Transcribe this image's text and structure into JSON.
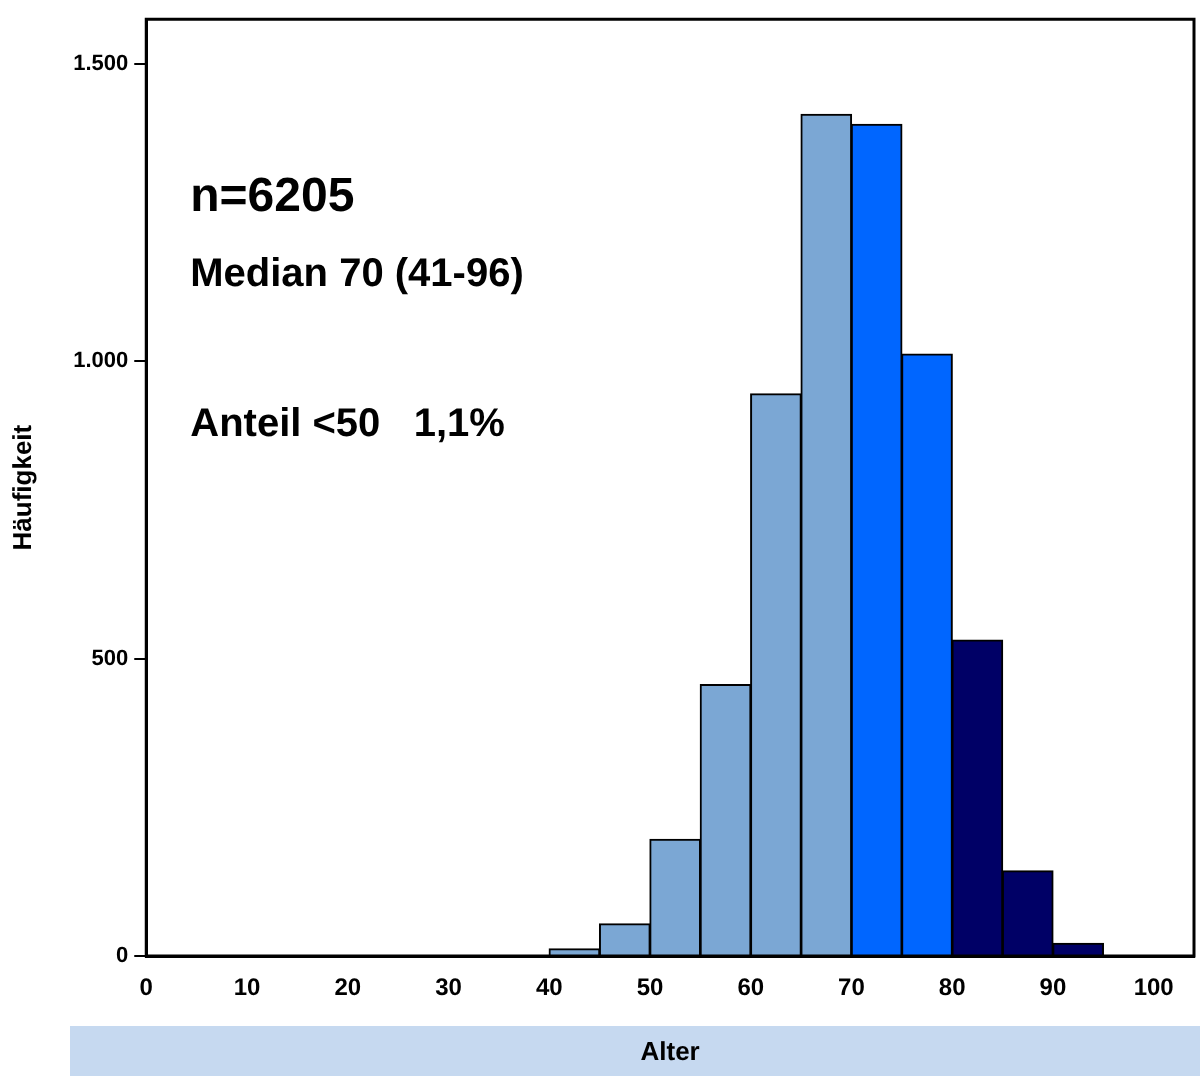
{
  "chart_data": {
    "type": "histogram",
    "xlabel": "Alter",
    "ylabel": "Häufigkeit",
    "bins": [
      40,
      45,
      50,
      55,
      60,
      65,
      70,
      75,
      80,
      85,
      90,
      95
    ],
    "values": [
      12,
      54,
      196,
      456,
      945,
      1415,
      1398,
      1012,
      531,
      143,
      21
    ],
    "colors": [
      "#7ba7d4",
      "#7ba7d4",
      "#7ba7d4",
      "#7ba7d4",
      "#7ba7d4",
      "#7ba7d4",
      "#0066ff",
      "#0066ff",
      "#000066",
      "#000066",
      "#000066"
    ],
    "xlim": [
      0,
      104
    ],
    "xticks": [
      0,
      10,
      20,
      30,
      40,
      50,
      60,
      70,
      80,
      90,
      100
    ],
    "ylim": [
      0,
      1575
    ],
    "yticks": [
      0,
      {
        "value": 500,
        "label": "500"
      },
      {
        "value": 1000,
        "label": "1.000"
      },
      {
        "value": 1500,
        "label": "1.500"
      }
    ],
    "annotations": [
      "n=6205",
      "Median 70 (41-96)",
      "Anteil <50   1,1%"
    ],
    "grid": false,
    "legend": false
  }
}
